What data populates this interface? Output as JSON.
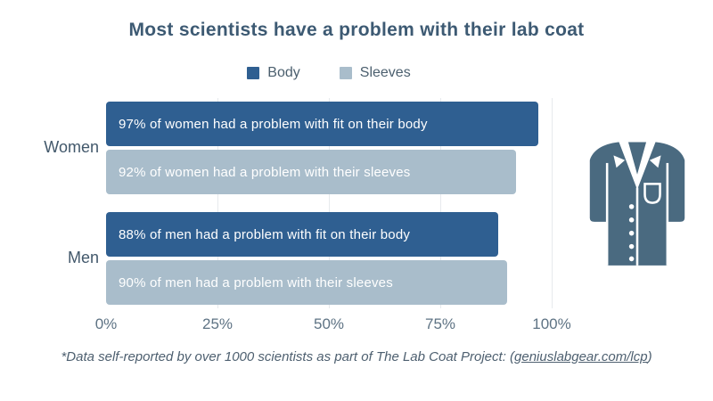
{
  "title": "Most scientists have a problem with their lab coat",
  "legend": [
    {
      "label": "Body",
      "color": "#2f5f91"
    },
    {
      "label": "Sleeves",
      "color": "#a9bdcb"
    }
  ],
  "chart_data": {
    "type": "bar",
    "orientation": "horizontal",
    "title": "Most scientists have a problem with their lab coat",
    "categories": [
      "Women",
      "Men"
    ],
    "series": [
      {
        "name": "Body",
        "color": "#2f5f91",
        "values": [
          97,
          88
        ],
        "bar_labels": [
          "97% of women had a problem with fit on their body",
          "88% of men had a problem with fit on their body"
        ]
      },
      {
        "name": "Sleeves",
        "color": "#a9bdcb",
        "values": [
          92,
          90
        ],
        "bar_labels": [
          "92% of women had a problem with their sleeves",
          "90% of men had a problem with their sleeves"
        ]
      }
    ],
    "x_ticks": [
      "0%",
      "25%",
      "50%",
      "75%",
      "100%"
    ],
    "xlim": [
      0,
      100
    ],
    "grid": "vertical",
    "legend_position": "top"
  },
  "footnote": {
    "prefix": "*Data self-reported by over 1000 scientists as part of The Lab Coat Project: (",
    "link": "geniuslabgear.com/lcp",
    "suffix": ")"
  },
  "icons": {
    "lab_coat": "lab-coat-icon"
  },
  "colors": {
    "body_bar": "#2f5f91",
    "sleeves_bar": "#a9bdcb",
    "title_text": "#3d5a73",
    "category_text": "#42586b",
    "tick_text": "#5e7384",
    "footnote_text": "#4e6070",
    "gridline": "#e7eaed",
    "bar_label_text": "#ffffff",
    "coat_icon": "#4a6a80",
    "background": "#ffffff"
  }
}
